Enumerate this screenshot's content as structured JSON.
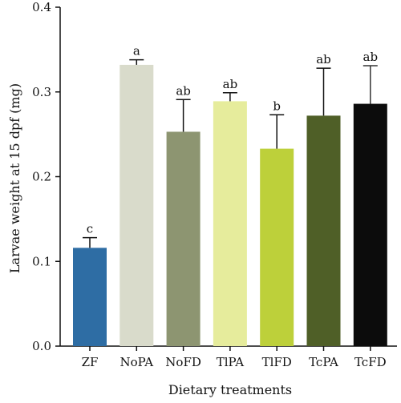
{
  "chart_data": {
    "type": "bar",
    "xlabel": "Dietary treatments",
    "ylabel": "Larvae weight at 15 dpf (mg)",
    "ylim": [
      0,
      0.4
    ],
    "yticks": [
      "0.0",
      "0.1",
      "0.2",
      "0.3",
      "0.4"
    ],
    "categories": [
      "ZF",
      "NoPA",
      "NoFD",
      "TlPA",
      "TlFD",
      "TcPA",
      "TcFD"
    ],
    "values": [
      0.116,
      0.332,
      0.253,
      0.289,
      0.233,
      0.272,
      0.286
    ],
    "error_upper": [
      0.012,
      0.006,
      0.038,
      0.01,
      0.04,
      0.056,
      0.045
    ],
    "significance": [
      "c",
      "a",
      "ab",
      "ab",
      "b",
      "ab",
      "ab"
    ],
    "colors": [
      "#2e6da4",
      "#d9dbcb",
      "#8d9571",
      "#e6ec9c",
      "#bdd03a",
      "#4f5f27",
      "#0c0c0c"
    ],
    "grid": false,
    "legend": "none"
  }
}
